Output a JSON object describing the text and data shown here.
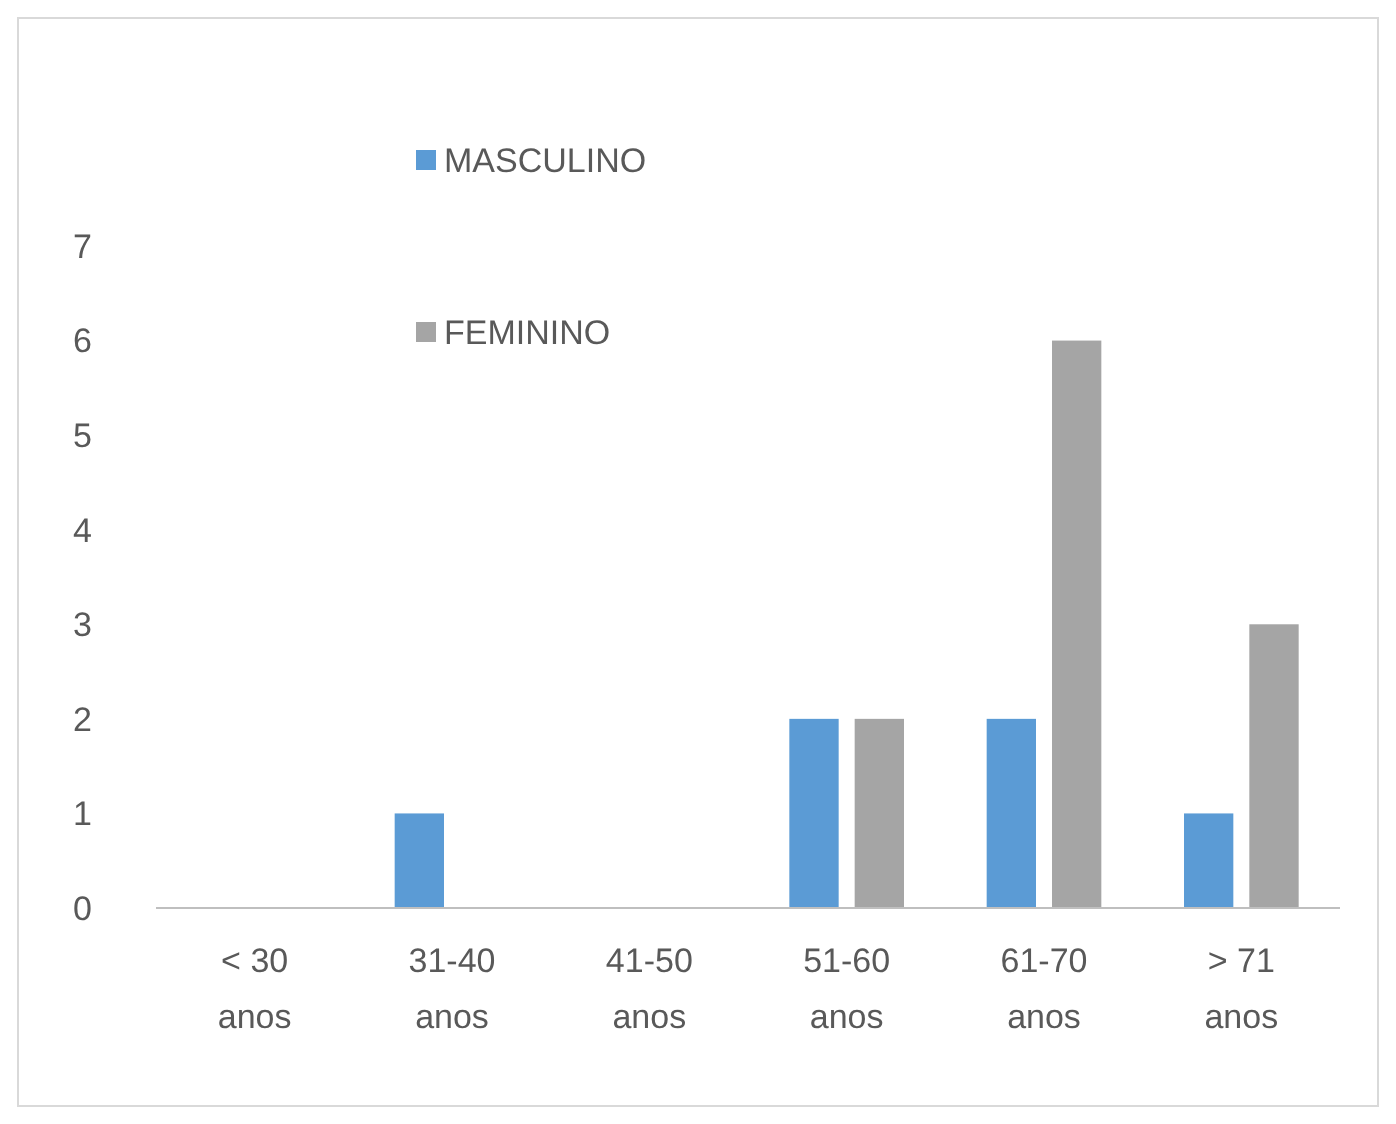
{
  "chart_data": {
    "type": "bar",
    "categories": [
      "< 30 anos",
      "31-40 anos",
      "41-50 anos",
      "51-60 anos",
      "61-70 anos",
      "> 71 anos"
    ],
    "series": [
      {
        "name": "MASCULINO",
        "color": "#5b9bd5",
        "values": [
          0,
          1,
          0,
          2,
          2,
          1
        ]
      },
      {
        "name": "FEMININO",
        "color": "#a5a5a5",
        "values": [
          0,
          0,
          0,
          2,
          6,
          3
        ]
      }
    ],
    "ylim": [
      0,
      7
    ],
    "yticks": [
      0,
      1,
      2,
      3,
      4,
      5,
      6,
      7
    ],
    "grid": false,
    "legend": "top left"
  }
}
